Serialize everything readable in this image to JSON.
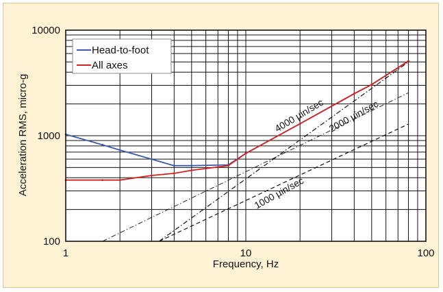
{
  "chart_data": {
    "type": "line",
    "xlabel": "Frequency, Hz",
    "ylabel": "Acceleration RMS, micro-g",
    "xscale": "log",
    "yscale": "log",
    "xlim": [
      1,
      100
    ],
    "ylim": [
      100,
      10000
    ],
    "grid": true,
    "x_ticks": [
      {
        "value": 1,
        "label": "1"
      },
      {
        "value": 10,
        "label": "10"
      },
      {
        "value": 100,
        "label": "100"
      }
    ],
    "y_ticks": [
      {
        "value": 100,
        "label": "100"
      },
      {
        "value": 1000,
        "label": "1000"
      },
      {
        "value": 10000,
        "label": "10000"
      }
    ],
    "legend_position": "top-left",
    "series": [
      {
        "name": "Head-to-foot",
        "color": "#3b5aa8",
        "style": "solid",
        "points": [
          [
            1,
            1030
          ],
          [
            1.6,
            820
          ],
          [
            2,
            730
          ],
          [
            3,
            600
          ],
          [
            4,
            520
          ],
          [
            5,
            520
          ],
          [
            8,
            530
          ],
          [
            10,
            680
          ],
          [
            20,
            1300
          ],
          [
            40,
            2500
          ],
          [
            50,
            3050
          ],
          [
            80,
            5100
          ]
        ]
      },
      {
        "name": "All axes",
        "color": "#d42020",
        "style": "solid",
        "points": [
          [
            1,
            380
          ],
          [
            1.6,
            380
          ],
          [
            2,
            380
          ],
          [
            3,
            420
          ],
          [
            4,
            440
          ],
          [
            5,
            470
          ],
          [
            8,
            520
          ],
          [
            10,
            680
          ],
          [
            20,
            1300
          ],
          [
            40,
            2500
          ],
          [
            50,
            3050
          ],
          [
            80,
            5100
          ]
        ]
      }
    ],
    "reference_lines": [
      {
        "label": "4000 µin/sec",
        "color": "#111111",
        "style": "dash-dot",
        "points": [
          [
            3.3,
            100
          ],
          [
            80,
            5000
          ]
        ]
      },
      {
        "label": "2000 µin/sec",
        "color": "#111111",
        "style": "dash-dot",
        "points": [
          [
            1.6,
            100
          ],
          [
            80,
            2550
          ]
        ]
      },
      {
        "label": "1000 µin/sec",
        "color": "#111111",
        "style": "dashed",
        "points": [
          [
            3.3,
            100
          ],
          [
            80,
            1290
          ]
        ]
      }
    ]
  }
}
